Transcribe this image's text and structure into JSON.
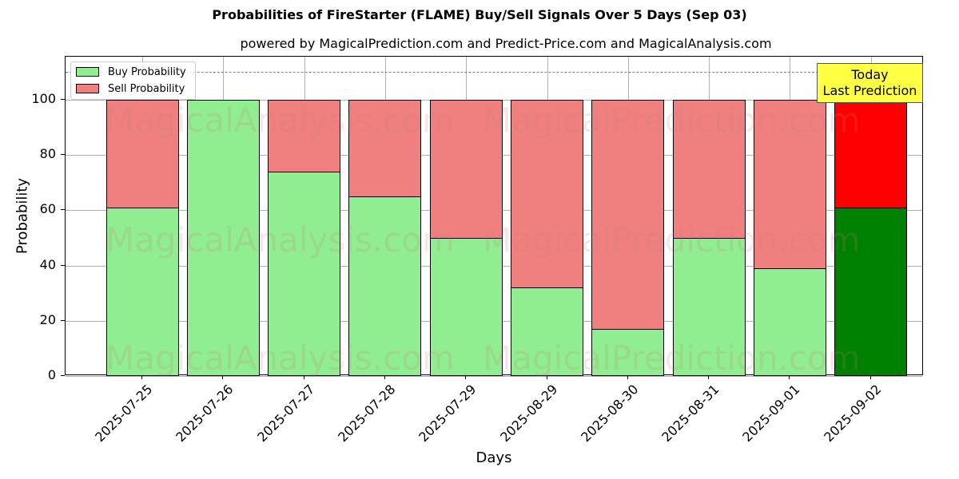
{
  "chart_data": {
    "type": "bar",
    "stacked": true,
    "title": "Probabilities of FireStarter (FLAME) Buy/Sell Signals Over 5 Days (Sep 03)",
    "subtitle": "powered by MagicalPrediction.com and Predict-Price.com and MagicalAnalysis.com",
    "xlabel": "Days",
    "ylabel": "Probability",
    "ylim": [
      0,
      115
    ],
    "yticks": [
      0,
      20,
      40,
      60,
      80,
      100
    ],
    "grid": true,
    "legend_position": "upper left",
    "categories": [
      "2025-07-25",
      "2025-07-26",
      "2025-07-27",
      "2025-07-28",
      "2025-07-29",
      "2025-08-29",
      "2025-08-30",
      "2025-08-31",
      "2025-09-01",
      "2025-09-02"
    ],
    "series": [
      {
        "name": "Buy Probability",
        "color": "#90ee90",
        "values": [
          61,
          100,
          74,
          65,
          50,
          32,
          17,
          50,
          39,
          61
        ]
      },
      {
        "name": "Sell Probability",
        "color": "#f08080",
        "values": [
          39,
          0,
          26,
          35,
          50,
          68,
          83,
          50,
          61,
          39
        ]
      }
    ],
    "highlight": {
      "index": 9,
      "buy_color": "#008000",
      "sell_color": "#ff0000"
    },
    "reference_line": {
      "y": 110,
      "style": "dashed",
      "color": "#808080"
    },
    "annotation": {
      "text_line1": "Today",
      "text_line2": "Last Prediction",
      "background": "#ffff44"
    },
    "watermarks": [
      "MagicalAnalysis.com",
      "MagicalPrediction.com"
    ]
  }
}
